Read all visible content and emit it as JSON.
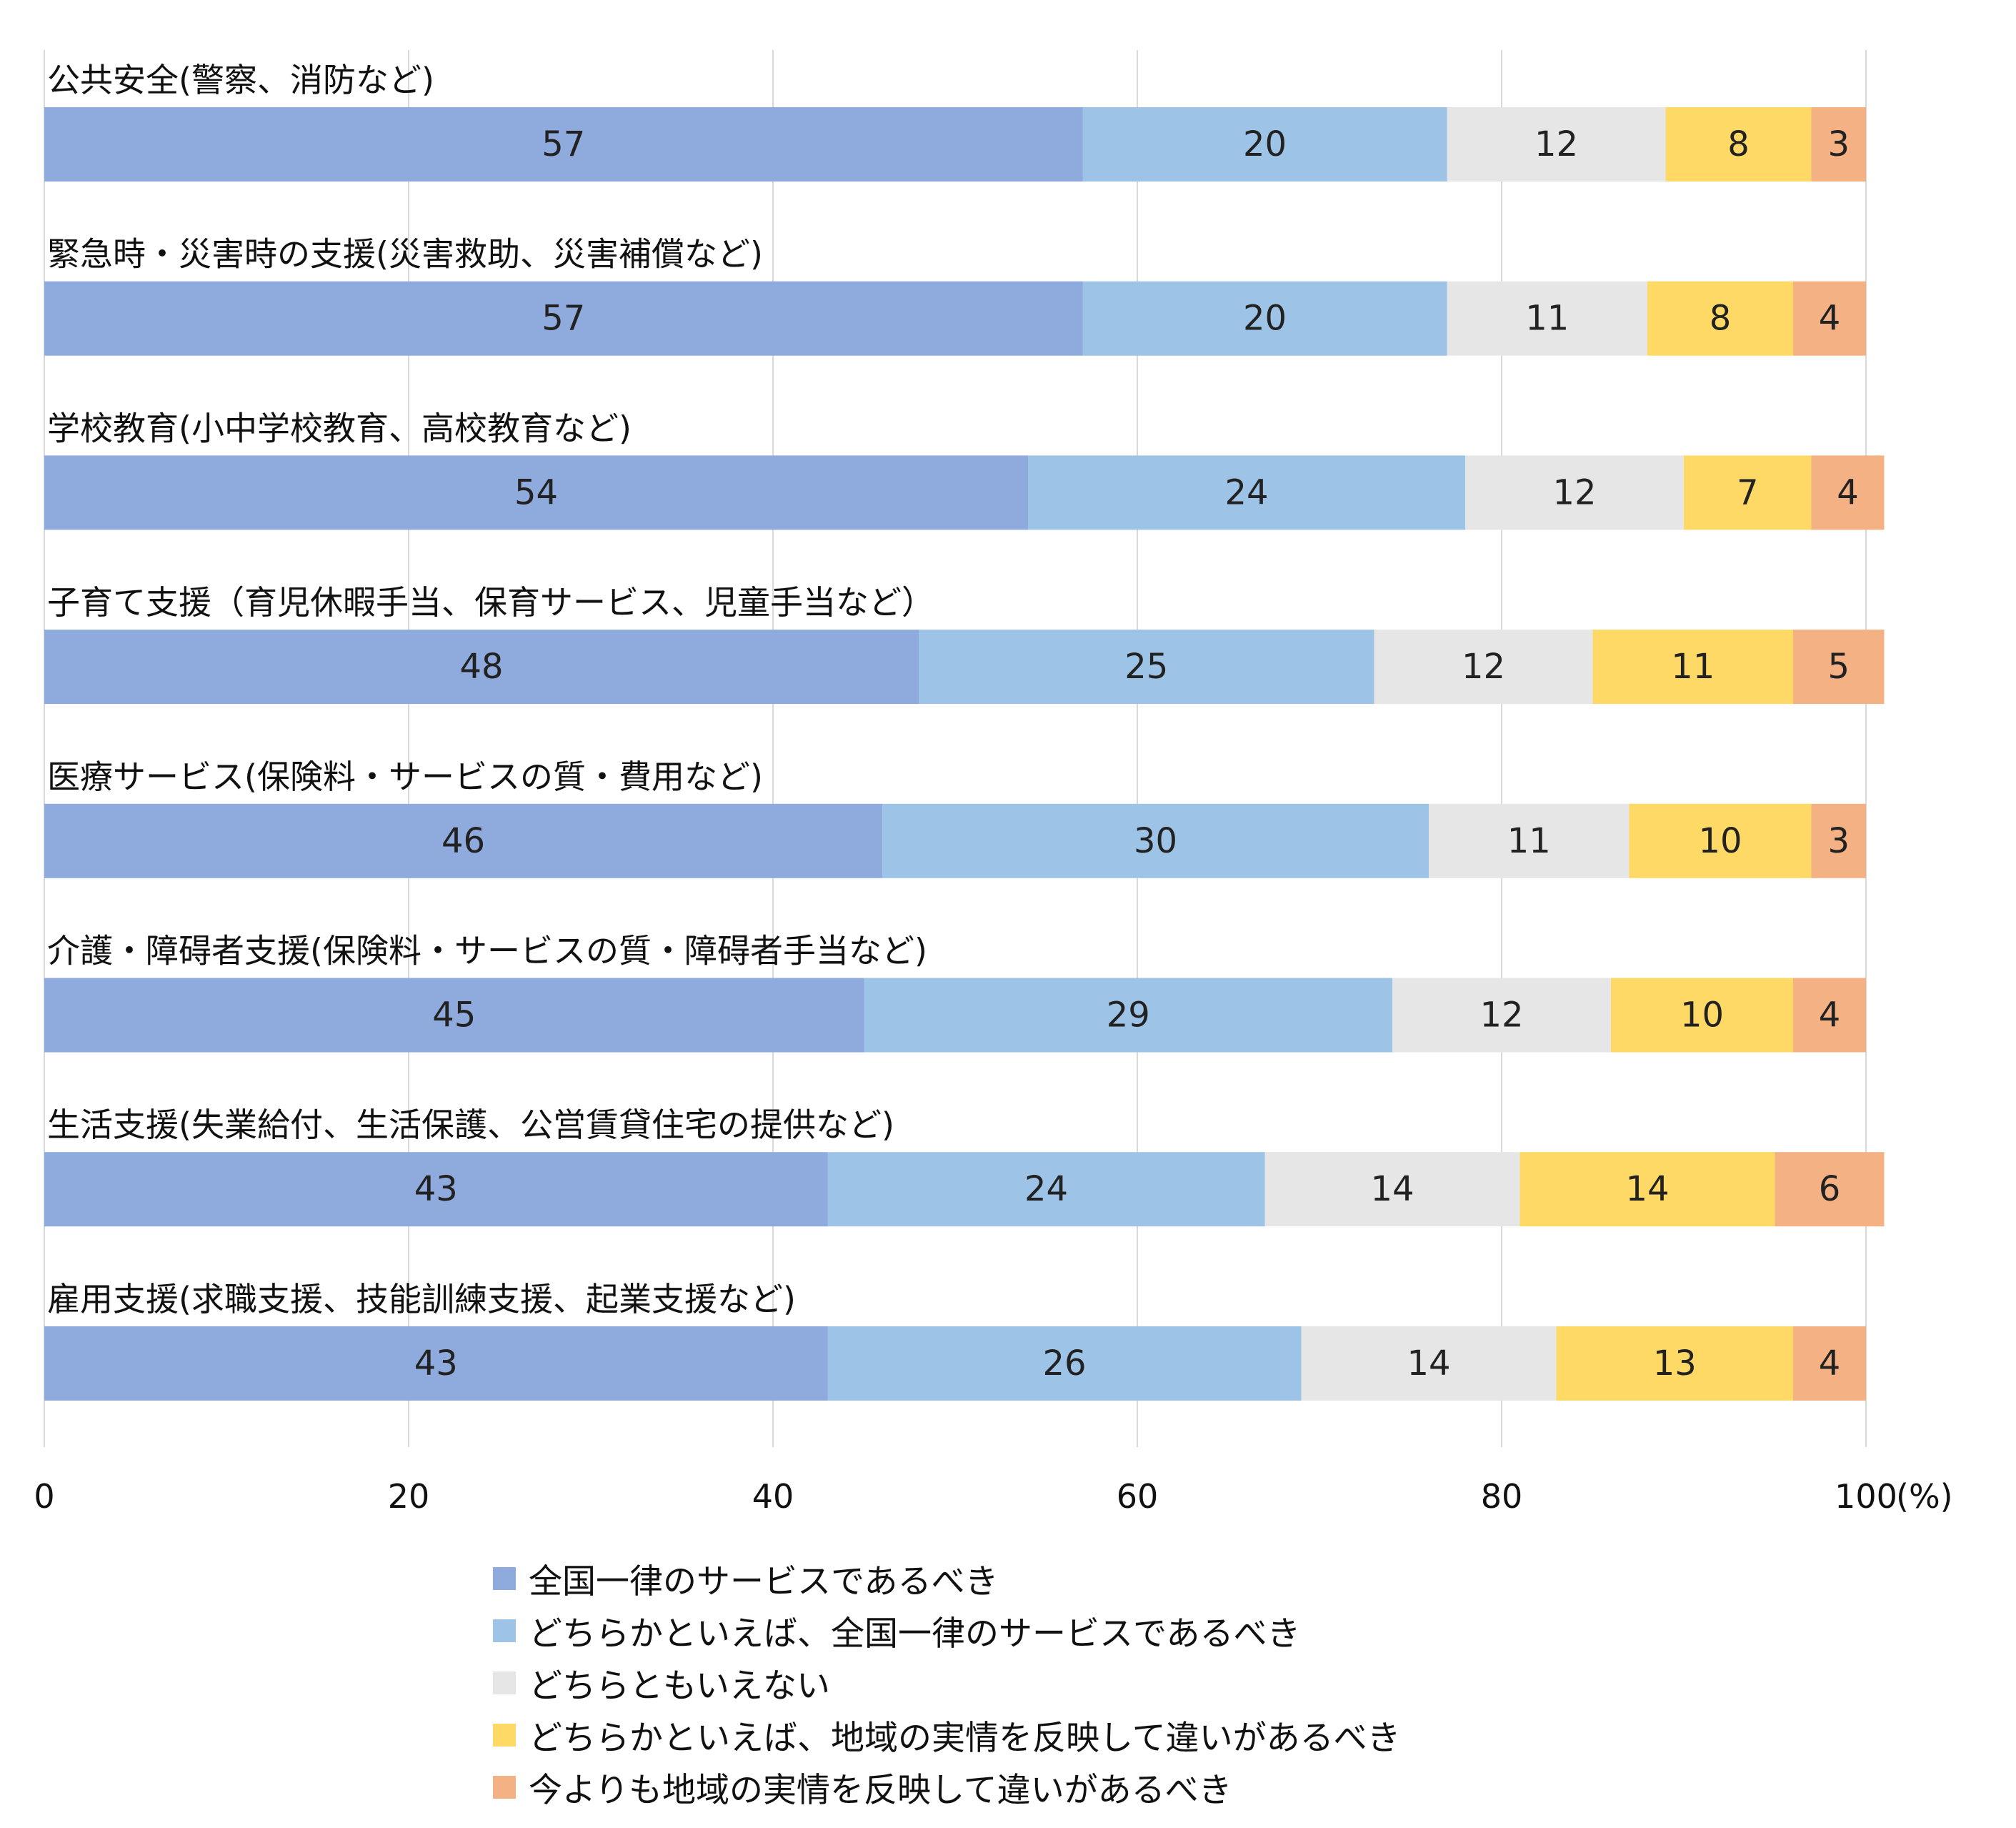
{
  "chart_data": {
    "type": "bar",
    "orientation": "horizontal",
    "stacked": true,
    "unit": "(%)",
    "xlim": [
      0,
      100
    ],
    "x_ticks": [
      "0",
      "20",
      "40",
      "60",
      "80",
      "100"
    ],
    "grid": true,
    "legend_position": "bottom",
    "categories": [
      "公共安全(警察、消防など)",
      "緊急時・災害時の支援(災害救助、災害補償など)",
      "学校教育(小中学校教育、高校教育など)",
      "子育て支援（育児休暇手当、保育サービス、児童手当など）",
      "医療サービス(保険料・サービスの質・費用など)",
      "介護・障碍者支援(保険料・サービスの質・障碍者手当など)",
      "生活支援(失業給付、生活保護、公営賃貸住宅の提供など)",
      "雇用支援(求職支援、技能訓練支援、起業支援など)"
    ],
    "series": [
      {
        "name": "全国一律のサービスであるべき",
        "color": "#8FAADC",
        "values": [
          57,
          57,
          54,
          48,
          46,
          45,
          43,
          43
        ]
      },
      {
        "name": "どちらかといえば、全国一律のサービスであるべき",
        "color": "#9DC3E6",
        "values": [
          20,
          20,
          24,
          25,
          30,
          29,
          24,
          26
        ]
      },
      {
        "name": "どちらともいえない",
        "color": "#E7E6E6",
        "values": [
          12,
          11,
          12,
          12,
          11,
          12,
          14,
          14
        ]
      },
      {
        "name": "どちらかといえば、地域の実情を反映して違いがあるべき",
        "color": "#FFD966",
        "values": [
          8,
          8,
          7,
          11,
          10,
          10,
          14,
          13
        ]
      },
      {
        "name": "今よりも地域の実情を反映して違いがあるべき",
        "color": "#F4B183",
        "values": [
          3,
          4,
          4,
          5,
          3,
          4,
          6,
          4
        ]
      }
    ]
  }
}
